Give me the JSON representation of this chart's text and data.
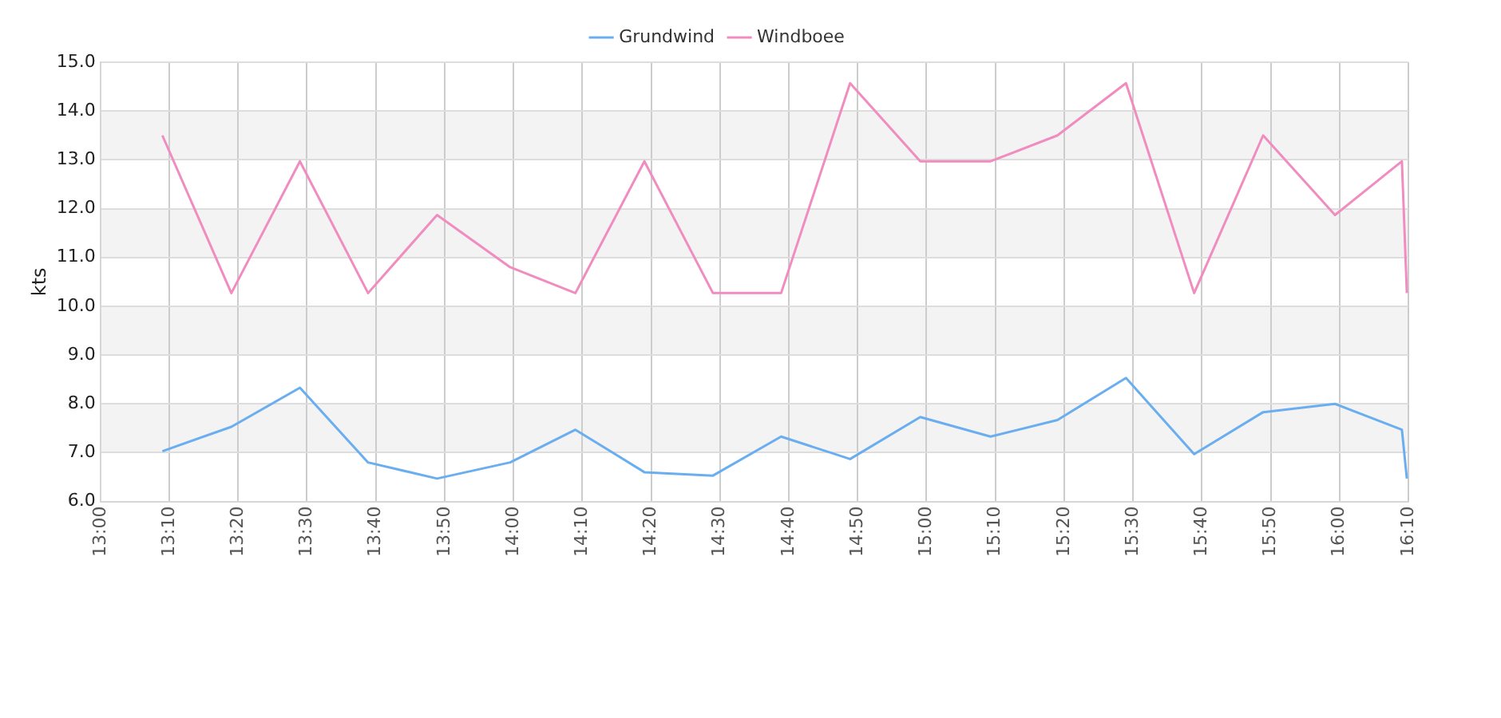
{
  "chart_data": {
    "type": "line",
    "ylabel": "kts",
    "x": [
      13.15,
      13.317,
      13.483,
      13.648,
      13.815,
      13.992,
      14.15,
      14.317,
      14.483,
      14.648,
      14.815,
      14.985,
      15.155,
      15.317,
      15.483,
      15.648,
      15.815,
      15.989,
      16.151,
      16.163
    ],
    "series": [
      {
        "name": "Grundwind",
        "color": "#6aaef0",
        "values": [
          7.03,
          7.53,
          8.33,
          6.8,
          6.47,
          6.8,
          7.47,
          6.6,
          6.53,
          7.33,
          6.87,
          7.73,
          7.33,
          7.67,
          8.53,
          6.97,
          7.83,
          8.0,
          7.47,
          6.47
        ]
      },
      {
        "name": "Windboee",
        "color": "#f08cbf",
        "values": [
          13.5,
          10.27,
          12.97,
          10.27,
          11.87,
          10.8,
          10.27,
          12.97,
          10.27,
          10.27,
          14.57,
          12.97,
          12.97,
          13.5,
          14.57,
          10.27,
          13.5,
          11.87,
          12.97,
          10.27
        ]
      }
    ],
    "xlim": [
      13,
      16.1667
    ],
    "xticks": [
      {
        "value": 13,
        "label": "13:00"
      },
      {
        "value": 13.1667,
        "label": "13:10"
      },
      {
        "value": 13.3333,
        "label": "13:20"
      },
      {
        "value": 13.5,
        "label": "13:30"
      },
      {
        "value": 13.6667,
        "label": "13:40"
      },
      {
        "value": 13.8333,
        "label": "13:50"
      },
      {
        "value": 14,
        "label": "14:00"
      },
      {
        "value": 14.1667,
        "label": "14:10"
      },
      {
        "value": 14.3333,
        "label": "14:20"
      },
      {
        "value": 14.5,
        "label": "14:30"
      },
      {
        "value": 14.6667,
        "label": "14:40"
      },
      {
        "value": 14.8333,
        "label": "14:50"
      },
      {
        "value": 15,
        "label": "15:00"
      },
      {
        "value": 15.1667,
        "label": "15:10"
      },
      {
        "value": 15.3333,
        "label": "15:20"
      },
      {
        "value": 15.5,
        "label": "15:30"
      },
      {
        "value": 15.6667,
        "label": "15:40"
      },
      {
        "value": 15.8333,
        "label": "15:50"
      },
      {
        "value": 16,
        "label": "16:00"
      },
      {
        "value": 16.1667,
        "label": "16:10"
      }
    ],
    "ylim": [
      6,
      15
    ],
    "yticks": [
      {
        "value": 6,
        "label": "6.0"
      },
      {
        "value": 7,
        "label": "7.0"
      },
      {
        "value": 8,
        "label": "8.0"
      },
      {
        "value": 9,
        "label": "9.0"
      },
      {
        "value": 10,
        "label": "10.0"
      },
      {
        "value": 11,
        "label": "11.0"
      },
      {
        "value": 12,
        "label": "12.0"
      },
      {
        "value": 13,
        "label": "13.0"
      },
      {
        "value": 14,
        "label": "14.0"
      },
      {
        "value": 15,
        "label": "15.0"
      }
    ],
    "grid": true,
    "legend": "top",
    "marker": "none",
    "line_style": "solid"
  }
}
